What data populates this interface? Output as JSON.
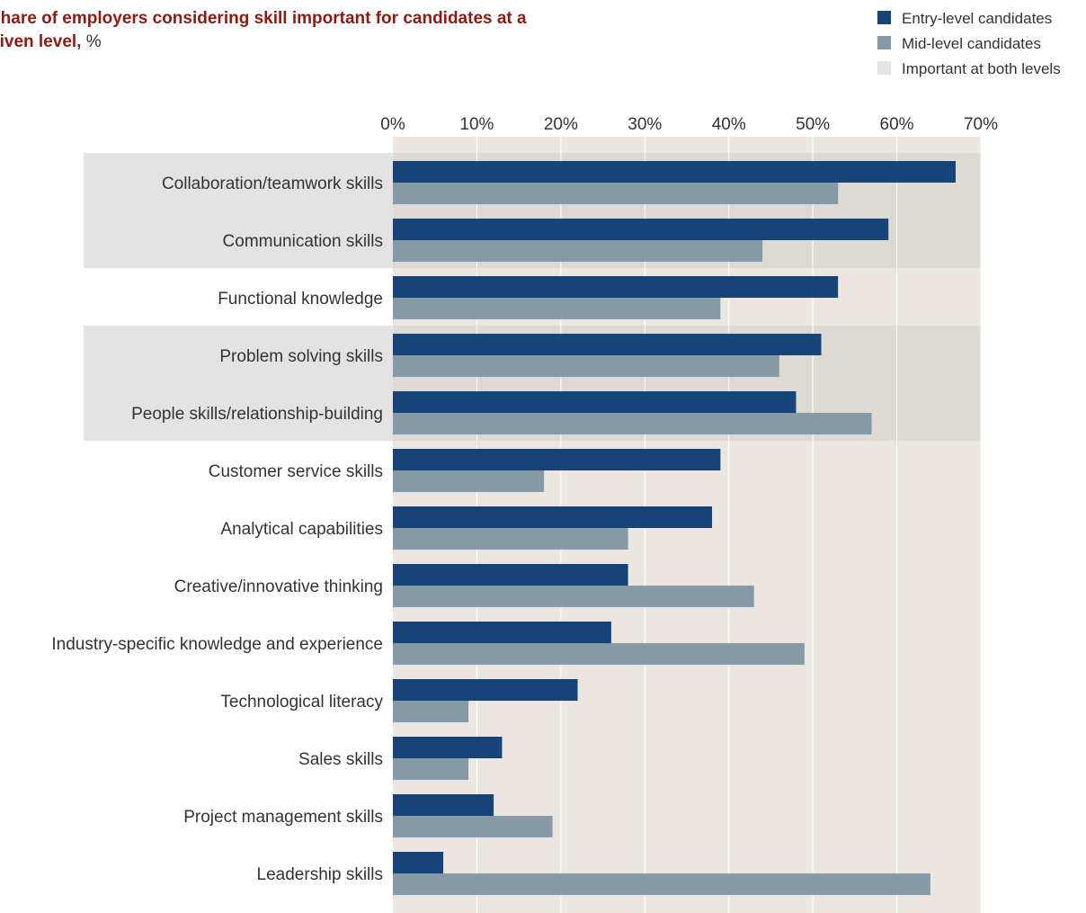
{
  "title": {
    "main": "Share of employers considering skill important for candidates at a given level,",
    "unit": "%"
  },
  "colors": {
    "entry": "#164478",
    "mid": "#8599a6",
    "both": "#e3e3e3",
    "plot_bg": "#ebe7e0",
    "plot_bg_both": "#ddd9d3",
    "grid": "#ffffff"
  },
  "chart_data": {
    "type": "bar",
    "orientation": "horizontal",
    "title": "Share of employers considering skill important for candidates at a given level, %",
    "categories": [
      "Collaboration/teamwork skills",
      "Communication skills",
      "Functional knowledge",
      "Problem solving skills",
      "People skills/relationship-building",
      "Customer service skills",
      "Analytical capabilities",
      "Creative/innovative thinking",
      "Industry-specific knowledge and experience",
      "Technological literacy",
      "Sales skills",
      "Project management skills",
      "Leadership skills"
    ],
    "series": [
      {
        "name": "Entry-level candidates",
        "values": [
          67,
          59,
          53,
          51,
          48,
          39,
          38,
          28,
          26,
          22,
          13,
          12,
          6
        ]
      },
      {
        "name": "Mid-level candidates",
        "values": [
          53,
          44,
          39,
          46,
          57,
          18,
          28,
          43,
          49,
          9,
          9,
          19,
          64
        ]
      }
    ],
    "highlight": {
      "name": "Important at both levels",
      "categories": [
        "Collaboration/teamwork skills",
        "Communication skills",
        "Problem solving skills",
        "People skills/relationship-building"
      ]
    },
    "xlim": [
      0,
      70
    ],
    "xticks": [
      0,
      10,
      20,
      30,
      40,
      50,
      60,
      70
    ],
    "tick_suffix": "%",
    "grid": true,
    "legend_position": "top-right"
  }
}
